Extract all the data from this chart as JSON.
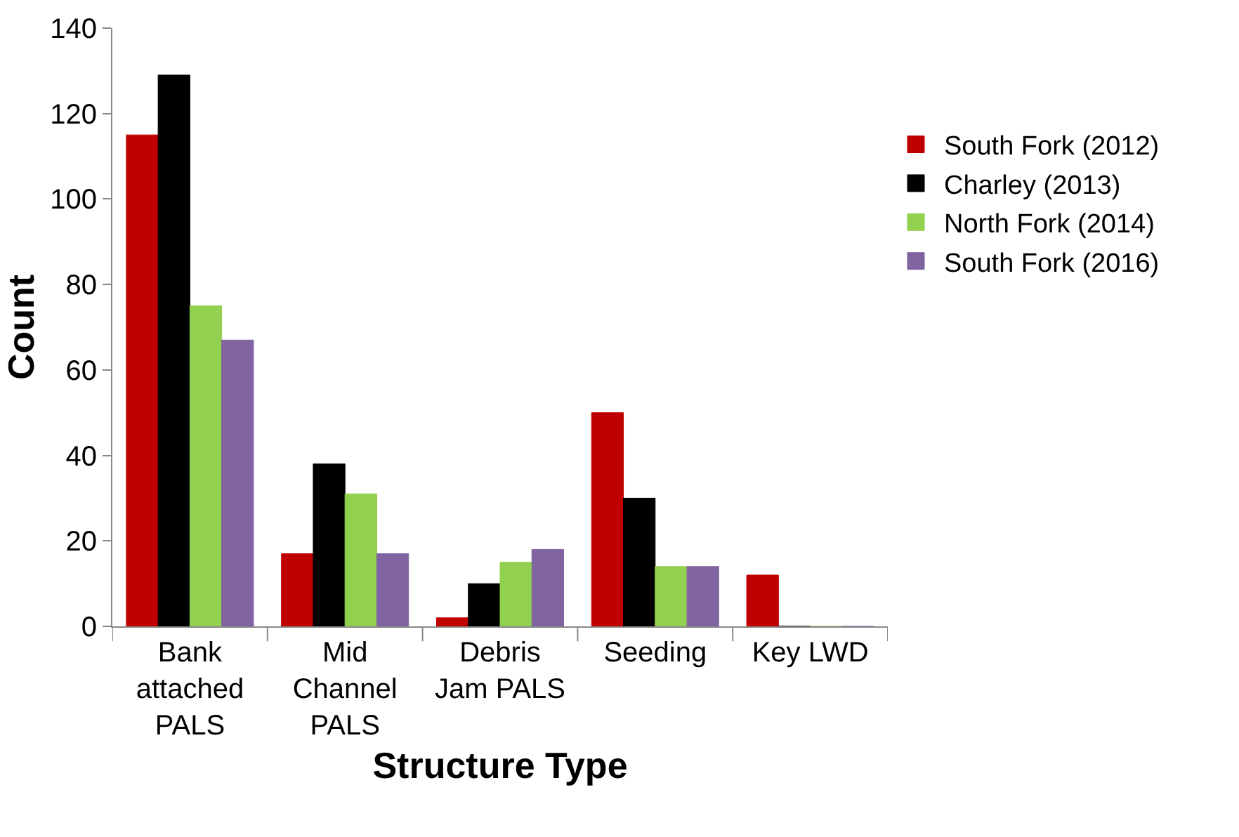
{
  "chart_data": {
    "type": "bar",
    "xlabel": "Structure Type",
    "ylabel": "Count",
    "categories": [
      "Bank\nattached\nPALS",
      "Mid\nChannel\nPALS",
      "Debris\nJam PALS",
      "Seeding",
      "Key LWD"
    ],
    "series": [
      {
        "name": "South Fork (2012)",
        "color": "#c00000",
        "values": [
          115,
          17,
          2,
          50,
          12
        ]
      },
      {
        "name": "Charley (2013)",
        "color": "#000000",
        "values": [
          129,
          38,
          10,
          30,
          0
        ]
      },
      {
        "name": "North Fork (2014)",
        "color": "#92d050",
        "values": [
          75,
          31,
          15,
          14,
          0
        ]
      },
      {
        "name": "South Fork (2016)",
        "color": "#8064a2",
        "values": [
          67,
          17,
          18,
          14,
          0
        ]
      }
    ],
    "ylim": [
      0,
      140
    ],
    "yticks": [
      0,
      20,
      40,
      60,
      80,
      100,
      120,
      140
    ],
    "legend": "right"
  }
}
